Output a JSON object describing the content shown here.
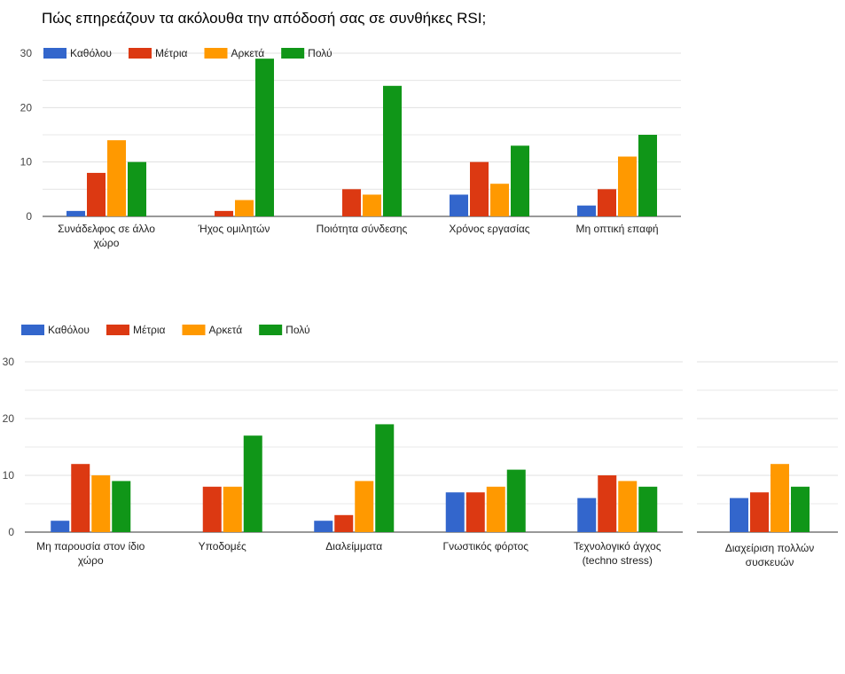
{
  "page": {
    "title": "Πώς επηρεάζουν τα ακόλουθα την απόδοσή σας σε συνθήκες RSI;"
  },
  "colors": {
    "Καθόλου": "#3366cc",
    "Μέτρια": "#dc3912",
    "Αρκετά": "#ff9900",
    "Πολύ": "#109618",
    "grid": "#e0e0e0",
    "baseline": "#333333"
  },
  "chart_data": [
    {
      "type": "bar",
      "title": "",
      "xlabel": "",
      "ylabel": "",
      "ylim": [
        0,
        30
      ],
      "yticks": [
        0,
        10,
        20,
        30
      ],
      "legend_position": "top-left",
      "grid": true,
      "categories": [
        [
          "Συνάδελφος σε άλλο",
          "χώρο"
        ],
        [
          "Ήχος ομιλητών"
        ],
        [
          "Ποιότητα σύνδεσης"
        ],
        [
          "Χρόνος εργασίας"
        ],
        [
          "Μη οπτική επαφή"
        ]
      ],
      "series": [
        {
          "name": "Καθόλου",
          "values": [
            1,
            0,
            0,
            4,
            2
          ]
        },
        {
          "name": "Μέτρια",
          "values": [
            8,
            1,
            5,
            10,
            5
          ]
        },
        {
          "name": "Αρκετά",
          "values": [
            14,
            3,
            4,
            6,
            11
          ]
        },
        {
          "name": "Πολύ",
          "values": [
            10,
            29,
            24,
            13,
            15
          ]
        }
      ]
    },
    {
      "type": "bar",
      "title": "",
      "xlabel": "",
      "ylabel": "",
      "ylim": [
        0,
        30
      ],
      "yticks": [
        0,
        10,
        20,
        30
      ],
      "legend_position": "top-left",
      "grid": true,
      "categories": [
        [
          "Μη παρουσία στον ίδιο",
          "χώρο"
        ],
        [
          "Υποδομές"
        ],
        [
          "Διαλείμματα"
        ],
        [
          "Γνωστικός φόρτος"
        ],
        [
          "Τεχνολογικό άγχος",
          "(techno stress)"
        ],
        [
          "Διαχείριση πολλών",
          "συσκευών"
        ]
      ],
      "series": [
        {
          "name": "Καθόλου",
          "values": [
            2,
            0,
            2,
            7,
            6,
            6
          ]
        },
        {
          "name": "Μέτρια",
          "values": [
            12,
            8,
            3,
            7,
            10,
            7
          ]
        },
        {
          "name": "Αρκετά",
          "values": [
            10,
            8,
            9,
            8,
            9,
            12
          ]
        },
        {
          "name": "Πολύ",
          "values": [
            9,
            17,
            19,
            11,
            8,
            8
          ]
        }
      ]
    }
  ]
}
